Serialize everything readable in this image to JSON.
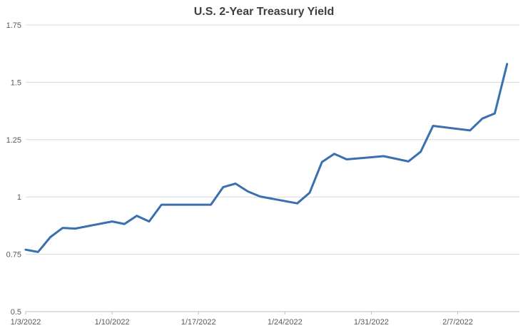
{
  "chart_data": {
    "type": "line",
    "title": "U.S. 2-Year Treasury Yield",
    "xlabel": "",
    "ylabel": "",
    "ylim": [
      0.5,
      1.75
    ],
    "yticks": [
      "0.5",
      "0.75",
      "1",
      "1.25",
      "1.5",
      "1.75"
    ],
    "xtick_labels": [
      "1/3/2022",
      "1/10/2022",
      "1/17/2022",
      "1/24/2022",
      "1/31/2022",
      "2/7/2022"
    ],
    "xlim": [
      "2022-01-03",
      "2022-02-12"
    ],
    "grid": true,
    "legend": "none",
    "color": "#3a6fb0",
    "series": [
      {
        "points": [
          [
            "2022-01-03",
            0.77
          ],
          [
            "2022-01-04",
            0.76
          ],
          [
            "2022-01-05",
            0.825
          ],
          [
            "2022-01-06",
            0.865
          ],
          [
            "2022-01-07",
            0.862
          ],
          [
            "2022-01-10",
            0.893
          ],
          [
            "2022-01-11",
            0.882
          ],
          [
            "2022-01-12",
            0.918
          ],
          [
            "2022-01-13",
            0.893
          ],
          [
            "2022-01-14",
            0.966
          ],
          [
            "2022-01-18",
            0.966
          ],
          [
            "2022-01-19",
            1.043
          ],
          [
            "2022-01-20",
            1.058
          ],
          [
            "2022-01-21",
            1.024
          ],
          [
            "2022-01-22",
            1.002
          ],
          [
            "2022-01-25",
            0.972
          ],
          [
            "2022-01-26",
            1.018
          ],
          [
            "2022-01-27",
            1.152
          ],
          [
            "2022-01-28",
            1.188
          ],
          [
            "2022-01-29",
            1.164
          ],
          [
            "2022-02-01",
            1.178
          ],
          [
            "2022-02-03",
            1.155
          ],
          [
            "2022-02-04",
            1.197
          ],
          [
            "2022-02-05",
            1.31
          ],
          [
            "2022-02-08",
            1.29
          ],
          [
            "2022-02-09",
            1.342
          ],
          [
            "2022-02-10",
            1.364
          ],
          [
            "2022-02-11",
            1.58
          ]
        ]
      }
    ]
  }
}
